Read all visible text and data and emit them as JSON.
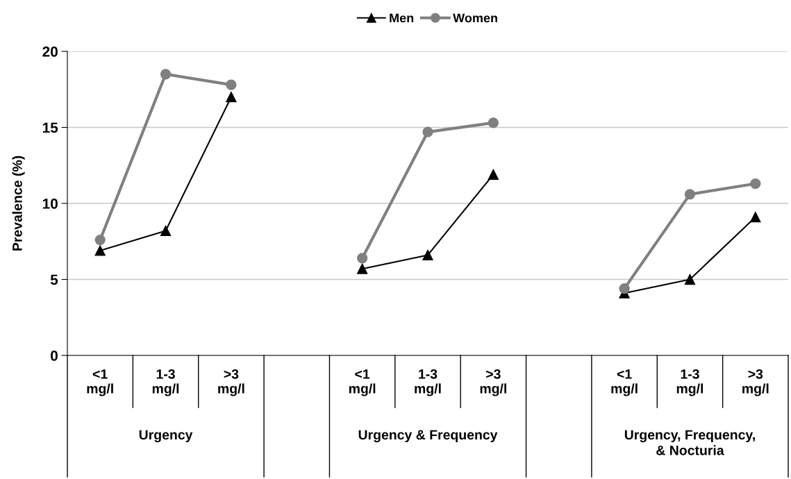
{
  "chart_data": {
    "type": "line",
    "ylabel": "Prevalence (%)",
    "categories": [
      "<1\nmg/l",
      "1-3\nmg/l",
      ">3\nmg/l",
      null,
      "<1\nmg/l",
      "1-3\nmg/l",
      ">3\nmg/l",
      null,
      "<1\nmg/l",
      "1-3\nmg/l",
      ">3\nmg/l"
    ],
    "series": [
      {
        "name": "Men",
        "color": "#000000",
        "marker": "triangle",
        "values": [
          6.9,
          8.2,
          17.0,
          null,
          5.7,
          6.6,
          11.9,
          null,
          4.1,
          5.0,
          9.1
        ]
      },
      {
        "name": "Women",
        "color": "#808080",
        "marker": "circle",
        "values": [
          7.6,
          18.5,
          17.8,
          null,
          6.4,
          14.7,
          15.3,
          null,
          4.4,
          10.6,
          11.3
        ]
      }
    ],
    "annotations": [
      "Urgency",
      "Urgency & Frequency",
      "Urgency, Frequency,\n& Nocturia"
    ],
    "ylim": [
      0,
      20
    ],
    "yticks": [
      0,
      5,
      10,
      15,
      20
    ],
    "grid": "y",
    "legend": "top"
  }
}
